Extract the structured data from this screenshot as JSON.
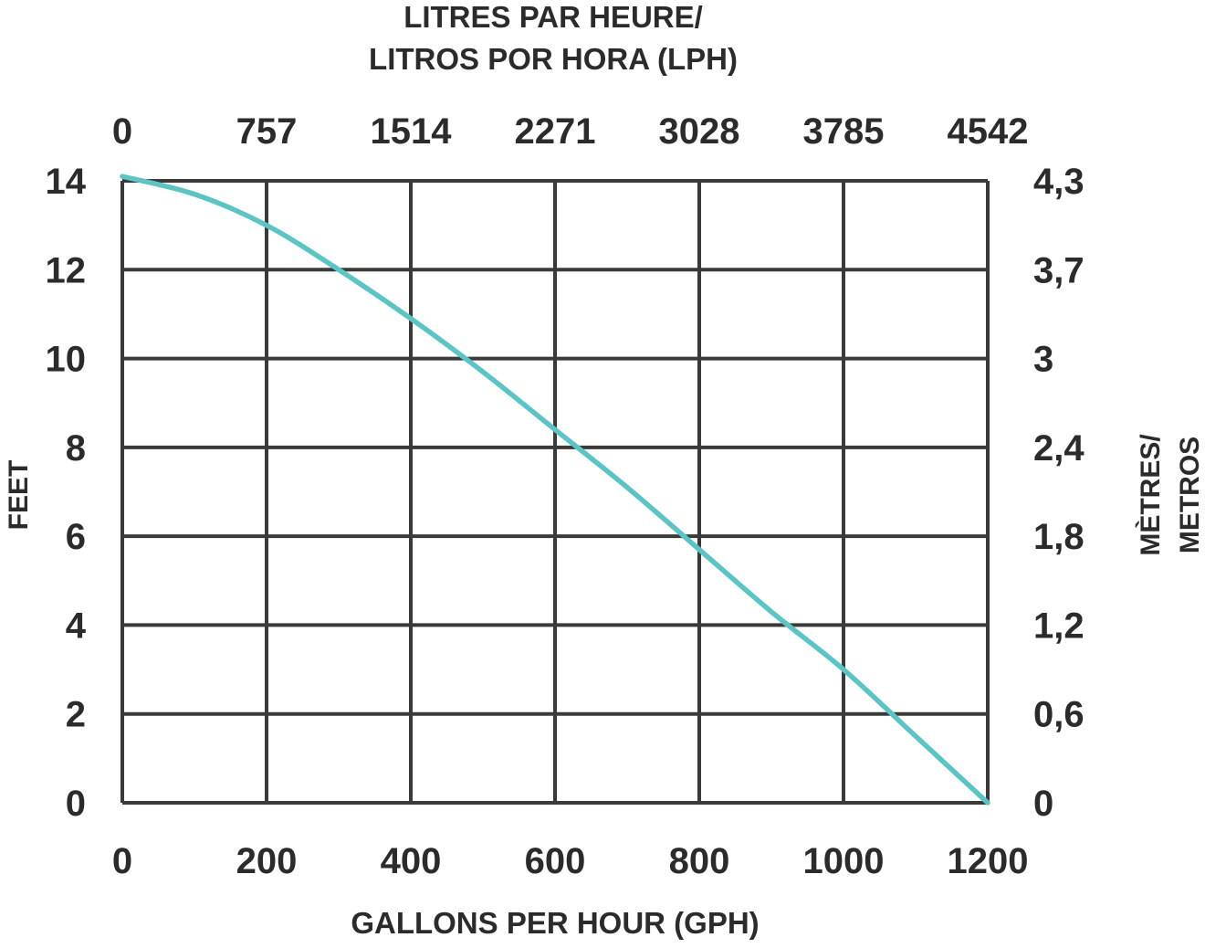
{
  "chart_data": {
    "type": "line",
    "top_title_line1": "LITRES PAR HEURE/",
    "top_title_line2": "LITROS POR HORA (LPH)",
    "xlabel": "GALLONS PER HOUR (GPH)",
    "ylabel_left": "FEET",
    "ylabel_right_line1": "MÈTRES/",
    "ylabel_right_line2": "METROS",
    "xlim": [
      0,
      1200
    ],
    "ylim": [
      0,
      14
    ],
    "x_ticks": [
      "0",
      "200",
      "400",
      "600",
      "800",
      "1000",
      "1200"
    ],
    "x_top_ticks": [
      "0",
      "757",
      "1514",
      "2271",
      "3028",
      "3785",
      "4542"
    ],
    "y_ticks": [
      "0",
      "2",
      "4",
      "6",
      "8",
      "10",
      "12",
      "14"
    ],
    "y_right_ticks": [
      "0",
      "0,6",
      "1,2",
      "1,8",
      "2,4",
      "3",
      "3,7",
      "4,3"
    ],
    "grid": true,
    "line_color": "#5cc4c4",
    "grid_color": "#3a3a3a",
    "series": [
      {
        "x": [
          0,
          100,
          200,
          300,
          400,
          500,
          600,
          700,
          800,
          900,
          1000,
          1100,
          1200
        ],
        "values": [
          14.1,
          13.7,
          13.0,
          12.0,
          10.9,
          9.7,
          8.4,
          7.1,
          5.7,
          4.3,
          3.0,
          1.5,
          0.0
        ]
      }
    ]
  }
}
